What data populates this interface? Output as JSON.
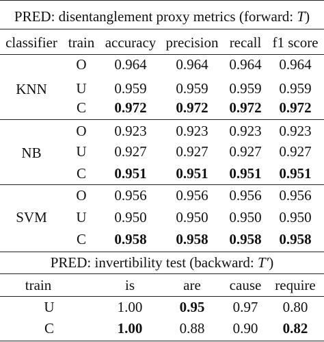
{
  "table1": {
    "caption": {
      "prefix": "PRED: disentanglement proxy metrics (forward: ",
      "symbol": "T",
      "suffix": ")"
    },
    "headers": [
      "classifier",
      "train",
      "accuracy",
      "precision",
      "recall",
      "f1 score"
    ],
    "groups": [
      {
        "classifier": "KNN",
        "rows": [
          {
            "train": "O",
            "values": [
              "0.964",
              "0.964",
              "0.964",
              "0.964"
            ],
            "bold": false
          },
          {
            "train": "U",
            "values": [
              "0.959",
              "0.959",
              "0.959",
              "0.959"
            ],
            "bold": false
          },
          {
            "train": "C",
            "values": [
              "0.972",
              "0.972",
              "0.972",
              "0.972"
            ],
            "bold": true
          }
        ]
      },
      {
        "classifier": "NB",
        "rows": [
          {
            "train": "O",
            "values": [
              "0.923",
              "0.923",
              "0.923",
              "0.923"
            ],
            "bold": false
          },
          {
            "train": "U",
            "values": [
              "0.927",
              "0.927",
              "0.927",
              "0.927"
            ],
            "bold": false
          },
          {
            "train": "C",
            "values": [
              "0.951",
              "0.951",
              "0.951",
              "0.951"
            ],
            "bold": true
          }
        ]
      },
      {
        "classifier": "SVM",
        "rows": [
          {
            "train": "O",
            "values": [
              "0.956",
              "0.956",
              "0.956",
              "0.956"
            ],
            "bold": false
          },
          {
            "train": "U",
            "values": [
              "0.950",
              "0.950",
              "0.950",
              "0.950"
            ],
            "bold": false
          },
          {
            "train": "C",
            "values": [
              "0.958",
              "0.958",
              "0.958",
              "0.958"
            ],
            "bold": true
          }
        ]
      }
    ]
  },
  "table2": {
    "caption": {
      "prefix": "PRED: invertibility test (backward: ",
      "symbol": "T′",
      "suffix": ")"
    },
    "headers": [
      "train",
      "is",
      "are",
      "cause",
      "require"
    ],
    "rows": [
      {
        "train": "U",
        "cells": [
          {
            "v": "1.00",
            "bold": false
          },
          {
            "v": "0.95",
            "bold": true
          },
          {
            "v": "0.97",
            "bold": false
          },
          {
            "v": "0.80",
            "bold": false
          }
        ]
      },
      {
        "train": "C",
        "cells": [
          {
            "v": "1.00",
            "bold": true
          },
          {
            "v": "0.88",
            "bold": false
          },
          {
            "v": "0.90",
            "bold": false
          },
          {
            "v": "0.82",
            "bold": true
          }
        ]
      }
    ]
  }
}
